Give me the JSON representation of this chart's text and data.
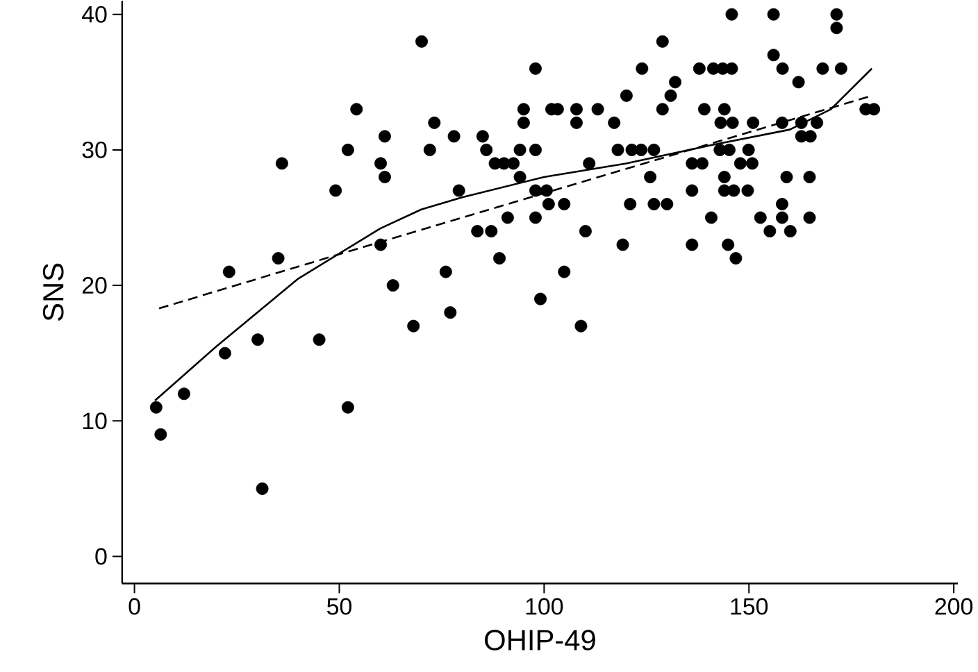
{
  "chart_data": {
    "type": "scatter",
    "xlabel": "OHIP-49",
    "ylabel": "SNS",
    "xlim": [
      -3,
      201
    ],
    "ylim": [
      -2,
      41
    ],
    "xticks": [
      0,
      50,
      100,
      150,
      200
    ],
    "yticks": [
      0,
      10,
      20,
      30,
      40
    ],
    "series": [
      {
        "color": "#000000",
        "marker": "circle",
        "x": [
          5.3,
          6.4,
          12.1,
          22.1,
          23.1,
          30.1,
          31.2,
          35.1,
          36,
          45.1,
          49.1,
          52.1,
          52.1,
          54.2,
          60.1,
          60.1,
          61.1,
          61.1,
          63.1,
          68.1,
          70.1,
          72.1,
          73.2,
          76,
          77.1,
          78,
          79.2,
          83.7,
          87.1,
          85,
          85.9,
          88,
          90.2,
          92.5,
          89.1,
          91.1,
          94.1,
          94.1,
          95,
          95,
          97.9,
          97.9,
          97.9,
          100.6,
          97.9,
          99.1,
          101.1,
          101.8,
          103.3,
          104.9,
          104.9,
          107.9,
          107.9,
          109,
          110.1,
          111,
          113.1,
          117.1,
          118,
          119.2,
          120.1,
          121,
          121.4,
          123.7,
          123.9,
          125.9,
          126.8,
          126.8,
          130,
          128.9,
          128.9,
          130.9,
          132,
          137.9,
          141.3,
          143.6,
          145.8,
          139.1,
          144,
          143.1,
          146,
          151,
          158.1,
          162.8,
          166.6,
          162.8,
          165,
          142.9,
          145.2,
          149.9,
          136.1,
          138.6,
          147.9,
          150.8,
          144,
          159.2,
          164.8,
          136.1,
          144,
          146.3,
          149.7,
          158.1,
          140.8,
          152.8,
          158.1,
          164.8,
          155.1,
          160.1,
          136.1,
          144.9,
          146.8,
          145.8,
          156,
          156,
          158.2,
          162.1,
          168,
          172.5,
          171.4,
          171.4,
          178.5,
          180.5
        ],
        "values": [
          11,
          9,
          12,
          15,
          21,
          16,
          5,
          22,
          29,
          16,
          27,
          11,
          30,
          33,
          23,
          29,
          31,
          28,
          20,
          17,
          38,
          30,
          32,
          21,
          18,
          31,
          27,
          24,
          24,
          31,
          30,
          29,
          29,
          29,
          22,
          25,
          30,
          28,
          33,
          32,
          36,
          30,
          27,
          27,
          25,
          19,
          26,
          33,
          33,
          26,
          21,
          33,
          32,
          17,
          24,
          29,
          33,
          32,
          30,
          23,
          34,
          26,
          30,
          30,
          36,
          28,
          30,
          26,
          26,
          38,
          33,
          34,
          35,
          36,
          36,
          36,
          36,
          33,
          33,
          32,
          32,
          32,
          32,
          32,
          32,
          31,
          31,
          30,
          30,
          30,
          29,
          29,
          29,
          29,
          28,
          28,
          28,
          27,
          27,
          27,
          27,
          26,
          25,
          25,
          25,
          25,
          24,
          24,
          23,
          23,
          22,
          40,
          40,
          37,
          36,
          35,
          36,
          36,
          40,
          39,
          33,
          33
        ]
      },
      {
        "type": "line",
        "color": "#000000",
        "line_style": "solid",
        "marker": "none",
        "x": [
          5,
          20,
          40,
          60,
          70,
          80,
          100,
          120,
          140,
          160,
          170,
          180
        ],
        "values": [
          11.5,
          15.5,
          20.5,
          24.2,
          25.6,
          26.5,
          28,
          29,
          30.3,
          31.5,
          33,
          36
        ]
      },
      {
        "type": "line",
        "color": "#000000",
        "line_style": "dashed",
        "marker": "none",
        "x": [
          6,
          50,
          100,
          150,
          180
        ],
        "values": [
          18.3,
          22.3,
          26.8,
          31.3,
          34
        ]
      }
    ]
  }
}
